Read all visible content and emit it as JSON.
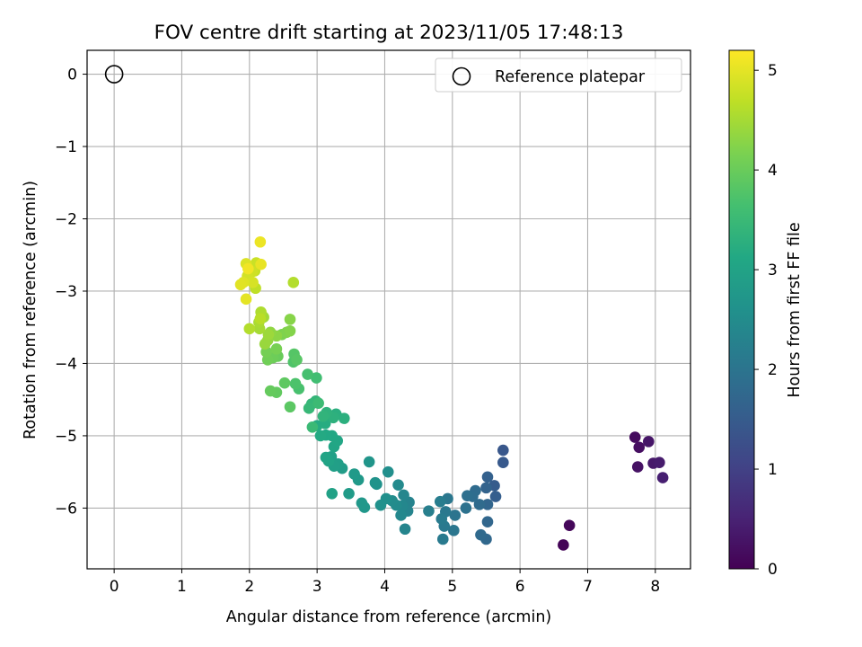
{
  "chart_data": {
    "type": "scatter",
    "title": "FOV centre drift starting at 2023/11/05 17:48:13",
    "xlabel": "Angular distance from reference (arcmin)",
    "ylabel": "Rotation from reference (arcmin)",
    "xlim": [
      -0.4,
      8.52
    ],
    "ylim": [
      -6.84,
      0.33
    ],
    "xticks": [
      0,
      1,
      2,
      3,
      4,
      5,
      6,
      7,
      8
    ],
    "xtick_labels": [
      "0",
      "1",
      "2",
      "3",
      "4",
      "5",
      "6",
      "7",
      "8"
    ],
    "yticks": [
      0,
      -1,
      -2,
      -3,
      -4,
      -5,
      -6
    ],
    "ytick_labels": [
      "0",
      "−1",
      "−2",
      "−3",
      "−4",
      "−5",
      "−6"
    ],
    "grid": true,
    "legend": {
      "placement": "upper right",
      "entries": [
        "Reference platepar"
      ]
    },
    "reference_point": {
      "name": "Reference platepar",
      "x": 0,
      "y": 0,
      "marker": "open-circle"
    },
    "colorbar": {
      "label": "Hours from first FF file",
      "colormap": "viridis",
      "range": [
        0,
        5.2
      ],
      "ticks": [
        0,
        1,
        2,
        3,
        4,
        5
      ],
      "tick_labels": [
        "0",
        "1",
        "2",
        "3",
        "4",
        "5"
      ]
    },
    "series": [
      {
        "columns": [
          "x",
          "y",
          "hours"
        ],
        "points": [
          [
            6.64,
            -6.51,
            0.05
          ],
          [
            6.73,
            -6.24,
            0.1
          ],
          [
            7.7,
            -5.02,
            0.15
          ],
          [
            7.76,
            -5.16,
            0.2
          ],
          [
            7.74,
            -5.43,
            0.25
          ],
          [
            7.9,
            -5.08,
            0.3
          ],
          [
            7.97,
            -5.38,
            0.35
          ],
          [
            8.06,
            -5.37,
            0.4
          ],
          [
            8.11,
            -5.58,
            0.45
          ],
          [
            5.75,
            -5.2,
            1.4
          ],
          [
            5.75,
            -5.37,
            1.45
          ],
          [
            5.62,
            -5.69,
            1.5
          ],
          [
            5.64,
            -5.84,
            1.55
          ],
          [
            5.52,
            -5.57,
            1.6
          ],
          [
            5.5,
            -5.72,
            1.65
          ],
          [
            5.52,
            -5.95,
            1.7
          ],
          [
            5.52,
            -6.19,
            1.72
          ],
          [
            5.5,
            -6.43,
            1.75
          ],
          [
            5.42,
            -6.37,
            1.78
          ],
          [
            5.4,
            -5.95,
            1.8
          ],
          [
            5.34,
            -5.76,
            1.82
          ],
          [
            5.3,
            -5.84,
            1.85
          ],
          [
            5.22,
            -5.83,
            1.9
          ],
          [
            5.2,
            -6.0,
            1.95
          ],
          [
            5.04,
            -6.1,
            2.0
          ],
          [
            5.02,
            -6.31,
            2.03
          ],
          [
            4.93,
            -5.87,
            2.05
          ],
          [
            4.9,
            -6.05,
            2.08
          ],
          [
            4.88,
            -6.25,
            2.1
          ],
          [
            4.86,
            -6.43,
            2.12
          ],
          [
            4.84,
            -6.15,
            2.15
          ],
          [
            4.82,
            -5.91,
            2.18
          ],
          [
            4.65,
            -6.04,
            2.22
          ],
          [
            4.36,
            -5.92,
            2.3
          ],
          [
            4.34,
            -6.04,
            2.33
          ],
          [
            4.3,
            -6.29,
            2.35
          ],
          [
            4.28,
            -5.82,
            2.38
          ],
          [
            4.26,
            -5.97,
            2.4
          ],
          [
            4.24,
            -6.1,
            2.42
          ],
          [
            4.2,
            -5.68,
            2.45
          ],
          [
            4.17,
            -5.96,
            2.48
          ],
          [
            4.11,
            -5.9,
            2.5
          ],
          [
            4.05,
            -5.5,
            2.55
          ],
          [
            4.02,
            -5.87,
            2.58
          ],
          [
            3.94,
            -5.96,
            2.6
          ],
          [
            3.88,
            -5.67,
            2.63
          ],
          [
            3.86,
            -5.65,
            2.65
          ],
          [
            3.77,
            -5.36,
            2.7
          ],
          [
            3.7,
            -5.99,
            2.73
          ],
          [
            3.66,
            -5.93,
            2.75
          ],
          [
            3.61,
            -5.61,
            2.78
          ],
          [
            3.55,
            -5.53,
            2.8
          ],
          [
            3.47,
            -5.8,
            2.83
          ],
          [
            3.37,
            -5.45,
            2.86
          ],
          [
            3.31,
            -5.39,
            2.9
          ],
          [
            3.25,
            -5.42,
            2.92
          ],
          [
            3.21,
            -5.29,
            2.95
          ],
          [
            3.22,
            -5.8,
            2.97
          ],
          [
            3.17,
            -5.35,
            3.0
          ],
          [
            3.13,
            -5.3,
            3.02
          ],
          [
            3.25,
            -5.15,
            3.05
          ],
          [
            3.3,
            -5.07,
            3.08
          ],
          [
            3.22,
            -5.0,
            3.1
          ],
          [
            3.13,
            -4.99,
            3.12
          ],
          [
            3.05,
            -5.0,
            3.15
          ],
          [
            3.0,
            -4.86,
            3.18
          ],
          [
            3.12,
            -4.83,
            3.2
          ],
          [
            3.18,
            -4.72,
            3.22
          ],
          [
            3.28,
            -4.7,
            3.25
          ],
          [
            3.4,
            -4.76,
            3.28
          ],
          [
            3.24,
            -4.75,
            3.3
          ],
          [
            3.14,
            -4.68,
            3.33
          ],
          [
            3.09,
            -4.73,
            3.36
          ],
          [
            2.98,
            -4.52,
            3.4
          ],
          [
            2.92,
            -4.56,
            3.43
          ],
          [
            2.88,
            -4.62,
            3.46
          ],
          [
            2.93,
            -4.88,
            3.5
          ],
          [
            3.02,
            -4.55,
            3.53
          ],
          [
            2.99,
            -4.2,
            3.6
          ],
          [
            2.86,
            -4.15,
            3.65
          ],
          [
            2.73,
            -4.35,
            3.68
          ],
          [
            2.68,
            -4.28,
            3.72
          ],
          [
            2.65,
            -3.98,
            3.75
          ],
          [
            2.66,
            -3.87,
            3.8
          ],
          [
            2.7,
            -3.95,
            3.83
          ],
          [
            2.6,
            -4.6,
            3.86
          ],
          [
            2.52,
            -4.27,
            3.9
          ],
          [
            2.4,
            -4.4,
            3.93
          ],
          [
            2.31,
            -4.38,
            3.96
          ],
          [
            2.42,
            -3.9,
            4.0
          ],
          [
            2.35,
            -3.92,
            4.03
          ],
          [
            2.27,
            -3.95,
            4.06
          ],
          [
            2.25,
            -3.84,
            4.1
          ],
          [
            2.4,
            -3.8,
            4.13
          ],
          [
            2.48,
            -3.6,
            4.16
          ],
          [
            2.55,
            -3.57,
            4.2
          ],
          [
            2.6,
            -3.55,
            4.23
          ],
          [
            2.6,
            -3.39,
            4.26
          ],
          [
            2.4,
            -3.62,
            4.3
          ],
          [
            2.31,
            -3.57,
            4.33
          ],
          [
            2.27,
            -3.68,
            4.36
          ],
          [
            2.23,
            -3.73,
            4.4
          ],
          [
            2.28,
            -3.6,
            4.43
          ],
          [
            2.21,
            -3.36,
            4.46
          ],
          [
            2.15,
            -3.52,
            4.5
          ],
          [
            2.14,
            -3.43,
            4.53
          ],
          [
            2.17,
            -3.29,
            4.56
          ],
          [
            2.0,
            -3.52,
            4.6
          ],
          [
            2.65,
            -2.88,
            4.6
          ],
          [
            2.16,
            -3.38,
            4.65
          ],
          [
            2.09,
            -2.96,
            4.7
          ],
          [
            2.08,
            -2.72,
            4.75
          ],
          [
            2.1,
            -2.61,
            4.78
          ],
          [
            2.04,
            -2.73,
            4.82
          ],
          [
            1.97,
            -2.79,
            4.85
          ],
          [
            2.05,
            -2.88,
            4.88
          ],
          [
            1.95,
            -2.62,
            4.92
          ],
          [
            1.91,
            -2.88,
            4.95
          ],
          [
            1.87,
            -2.91,
            4.97
          ],
          [
            1.95,
            -3.11,
            5.0
          ],
          [
            2.17,
            -2.63,
            5.03
          ],
          [
            2.16,
            -2.32,
            5.06
          ],
          [
            1.98,
            -2.69,
            5.1
          ]
        ]
      }
    ]
  }
}
